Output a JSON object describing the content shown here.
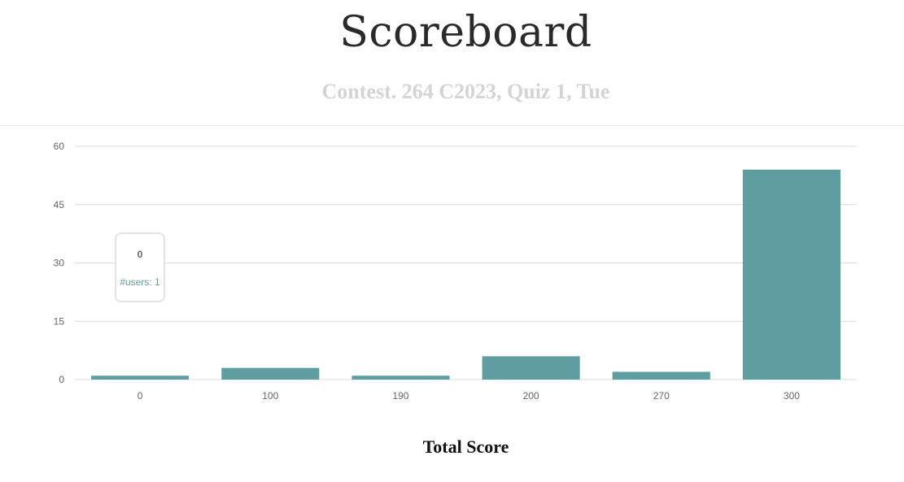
{
  "header": {
    "title": "Scoreboard",
    "subtitle": "Contest. 264 C2023, Quiz 1, Tue"
  },
  "tooltip": {
    "title": "0",
    "value": "#users: 1"
  },
  "colors": {
    "bar": "#5f9ea0",
    "grid": "#dcdcdc",
    "tick_text": "#666666"
  },
  "chart_data": {
    "type": "bar",
    "title": "",
    "xlabel": "Total Score",
    "ylabel": "",
    "categories": [
      "0",
      "100",
      "190",
      "200",
      "270",
      "300"
    ],
    "values": [
      1,
      3,
      1,
      6,
      2,
      54
    ],
    "ylim": [
      0,
      60
    ],
    "yticks": [
      0,
      15,
      30,
      45,
      60
    ],
    "grid": true,
    "legend": "none"
  }
}
